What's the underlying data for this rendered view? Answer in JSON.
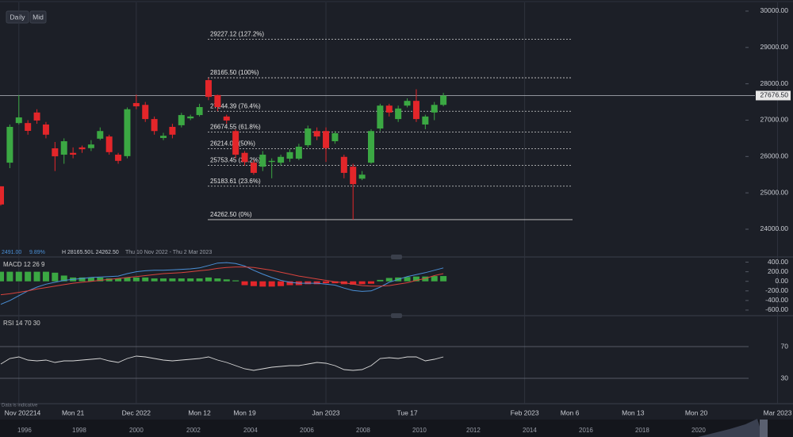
{
  "toolbar": {
    "buttons": [
      "Daily",
      "Mid"
    ]
  },
  "footnote": "Data is indicative",
  "navigator": {
    "years": [
      "1996",
      "1998",
      "2000",
      "2002",
      "2004",
      "2006",
      "2008",
      "2010",
      "2012",
      "2014",
      "2016",
      "2018",
      "2020"
    ]
  },
  "chart_data": [
    {
      "type": "candlestick",
      "categories": [
        null,
        null,
        "Nov 2022",
        null,
        "14",
        null,
        null,
        null,
        "Mon 21",
        null,
        null,
        null,
        null,
        null,
        null,
        "Dec 2022",
        null,
        null,
        null,
        null,
        null,
        null,
        "Mon 12",
        null,
        null,
        null,
        null,
        "Mon 19",
        null,
        null,
        null,
        null,
        null,
        null,
        null,
        null,
        "Jan 2023",
        null,
        null,
        null,
        null,
        null,
        null,
        null,
        null,
        "Tue 17",
        null,
        null,
        null,
        null,
        null,
        null,
        null,
        null,
        null,
        null,
        null,
        null,
        "Feb 2023",
        null,
        null,
        null,
        null,
        "Mon 6",
        null,
        null,
        null,
        null,
        null,
        null,
        "Mon 13",
        null,
        null,
        null,
        null,
        null,
        null,
        "Mon 20",
        null,
        null,
        null,
        null,
        null,
        null,
        null,
        null,
        "Mar 2023"
      ],
      "open": [
        25180,
        25830,
        26920,
        26920,
        27210,
        26880,
        26225,
        26050,
        26100,
        26250,
        26230,
        26490,
        26550,
        26050,
        26010,
        27470,
        27420,
        27030,
        26510,
        26815,
        26860,
        27050,
        27140,
        28100,
        27690,
        27100,
        26700,
        26100,
        25830,
        25720,
        25850,
        25830,
        25940,
        25940,
        26310,
        26700,
        26700,
        26420,
        25990,
        25720,
        25390,
        25830,
        26770,
        27400,
        27030,
        27400,
        27530,
        26880,
        27210,
        27420,
        null,
        null,
        null,
        null,
        null,
        null,
        null,
        null,
        null,
        null,
        null,
        null,
        null,
        null,
        null,
        null,
        null,
        null,
        null,
        null,
        null,
        null,
        null,
        null,
        null,
        null,
        null,
        null,
        null,
        null,
        null,
        null,
        null,
        null,
        null,
        null,
        null
      ],
      "high": [
        25180,
        26880,
        27690,
        27000,
        27300,
        26950,
        26400,
        26500,
        26250,
        26300,
        26450,
        26800,
        26600,
        26100,
        27350,
        27700,
        27500,
        27100,
        26650,
        26900,
        27200,
        27150,
        27450,
        28165.5,
        27700,
        27150,
        26750,
        26150,
        25900,
        26150,
        25950,
        26050,
        26200,
        26350,
        26850,
        26800,
        26800,
        26700,
        26050,
        25800,
        25600,
        26750,
        27450,
        27450,
        27400,
        27600,
        27850,
        27150,
        27500,
        27750,
        null,
        null,
        null,
        null,
        null,
        null,
        null,
        null,
        null,
        null,
        null,
        null,
        null,
        null,
        null,
        null,
        null,
        null,
        null,
        null,
        null,
        null,
        null,
        null,
        null,
        null,
        null,
        null,
        null,
        null,
        null,
        null,
        null,
        null,
        null,
        null,
        null
      ],
      "low": [
        24650,
        25680,
        26880,
        26600,
        26900,
        26500,
        25600,
        25800,
        25950,
        26100,
        26150,
        26450,
        26050,
        25800,
        25950,
        27300,
        26950,
        26600,
        26450,
        26500,
        26800,
        27000,
        27100,
        27550,
        27250,
        26900,
        25950,
        25750,
        25500,
        25600,
        25400,
        25750,
        25850,
        25900,
        26250,
        26450,
        25850,
        26350,
        25400,
        24262.5,
        25350,
        25800,
        26700,
        27100,
        26950,
        27350,
        26950,
        26750,
        27000,
        27380,
        null,
        null,
        null,
        null,
        null,
        null,
        null,
        null,
        null,
        null,
        null,
        null,
        null,
        null,
        null,
        null,
        null,
        null,
        null,
        null,
        null,
        null,
        null,
        null,
        null,
        null,
        null,
        null,
        null,
        null,
        null,
        null,
        null,
        null,
        null,
        null,
        null
      ],
      "close": [
        24680,
        26815,
        27075,
        26705,
        26990,
        26600,
        26005,
        26420,
        26050,
        26200,
        26330,
        26700,
        26120,
        25880,
        27300,
        27380,
        27030,
        26700,
        26570,
        26600,
        27140,
        27100,
        27360,
        27640,
        27360,
        26990,
        26050,
        25850,
        25550,
        26050,
        25880,
        25990,
        26120,
        26270,
        26770,
        26550,
        26230,
        26640,
        25550,
        25240,
        25500,
        26700,
        27400,
        27210,
        27320,
        27530,
        27030,
        27100,
        27420,
        27676.5,
        null,
        null,
        null,
        null,
        null,
        null,
        null,
        null,
        null,
        null,
        null,
        null,
        null,
        null,
        null,
        null,
        null,
        null,
        null,
        null,
        null,
        null,
        null,
        null,
        null,
        null,
        null,
        null,
        null,
        null,
        null,
        null,
        null,
        null,
        null,
        null,
        null
      ],
      "up_color": "#3ba843",
      "down_color": "#e3262a",
      "ylim": [
        23258,
        30305
      ],
      "yticks": [
        {
          "value": 24000,
          "label": "24000.00"
        },
        {
          "value": 25000,
          "label": "25000.00"
        },
        {
          "value": 26000,
          "label": "26000.00"
        },
        {
          "value": 27000,
          "label": "27000.00"
        },
        {
          "value": 28000,
          "label": "28000.00"
        },
        {
          "value": 29000,
          "label": "29000.00"
        },
        {
          "value": 30000,
          "label": "30000.00"
        }
      ],
      "fib_levels": [
        {
          "value": 29227.12,
          "label": "29227.12 (127.2%)"
        },
        {
          "value": 28165.5,
          "label": "28165.50 (100%)"
        },
        {
          "value": 27244.39,
          "label": "27244.39 (76.4%)"
        },
        {
          "value": 26674.55,
          "label": "26674.55 (61.8%)"
        },
        {
          "value": 26214,
          "label": "26214.00 (50%)"
        },
        {
          "value": 25753.45,
          "label": "25753.45 (38.2%)"
        },
        {
          "value": 25183.61,
          "label": "25183.61 (23.6%)"
        },
        {
          "value": 24262.5,
          "label": "24262.50 (0%)"
        }
      ],
      "last_price": {
        "value": 27676.5,
        "label": "27676.50"
      },
      "info": [
        "2491.00",
        "9.89%",
        "H 28165.50",
        "L 24262.50",
        "Thu 10 Nov 2022 - Thu 2 Mar 2023"
      ],
      "grid": true
    },
    {
      "type": "macd",
      "title": "MACD 12 26 9",
      "series": [
        {
          "color": "#4a8fd6",
          "values": [
            -480,
            -400,
            -300,
            -200,
            -120,
            -60,
            -20,
            20,
            40,
            60,
            80,
            90,
            100,
            110,
            160,
            200,
            220,
            230,
            230,
            240,
            250,
            260,
            280,
            330,
            380,
            390,
            370,
            320,
            230,
            150,
            80,
            20,
            -20,
            -40,
            -40,
            -40,
            -60,
            -80,
            -140,
            -190,
            -210,
            -200,
            -120,
            -20,
            40,
            100,
            140,
            180,
            230,
            280
          ]
        },
        {
          "color": "#d9433d",
          "values": [
            -280,
            -260,
            -230,
            -200,
            -160,
            -130,
            -100,
            -70,
            -40,
            -20,
            0,
            20,
            40,
            60,
            80,
            100,
            120,
            140,
            160,
            170,
            180,
            200,
            220,
            240,
            270,
            290,
            300,
            300,
            290,
            260,
            230,
            190,
            150,
            110,
            80,
            50,
            20,
            -10,
            -30,
            -60,
            -90,
            -100,
            -100,
            -90,
            -60,
            -30,
            20,
            60,
            120,
            160
          ]
        }
      ],
      "histogram": {
        "values": [
          200,
          200,
          200,
          200,
          200,
          200,
          180,
          120,
          80,
          80,
          80,
          80,
          60,
          60,
          80,
          80,
          80,
          60,
          60,
          60,
          60,
          60,
          60,
          80,
          60,
          40,
          20,
          -80,
          -100,
          -110,
          -110,
          -100,
          -80,
          -80,
          -60,
          -60,
          -40,
          -40,
          -60,
          -70,
          -60,
          -50,
          30,
          70,
          80,
          90,
          100,
          100,
          110,
          110
        ],
        "up_color": "#3ba843",
        "down_color": "#e3262a"
      },
      "ylim": [
        -700,
        475
      ],
      "yticks": [
        {
          "value": 400,
          "label": "400.00"
        },
        {
          "value": 200,
          "label": "200.00"
        },
        {
          "value": 0,
          "label": "0.00"
        },
        {
          "value": -200,
          "label": "-200.00"
        },
        {
          "value": -400,
          "label": "-400.00"
        },
        {
          "value": -600,
          "label": "-600.00"
        }
      ]
    },
    {
      "type": "line",
      "title": "RSI 14 70 30",
      "values": [
        48,
        55,
        57,
        53,
        52,
        53,
        50,
        52,
        52,
        53,
        54,
        55,
        52,
        50,
        55,
        58,
        57,
        55,
        53,
        52,
        53,
        54,
        55,
        57,
        53,
        50,
        46,
        42,
        40,
        42,
        44,
        45,
        46,
        46,
        48,
        50,
        49,
        46,
        41,
        40,
        41,
        46,
        55,
        56,
        55,
        57,
        57,
        52,
        54,
        57
      ],
      "color": "#d8d8d8",
      "ylim": [
        0,
        100
      ],
      "yticks": [
        30,
        70
      ],
      "grid": true
    }
  ]
}
